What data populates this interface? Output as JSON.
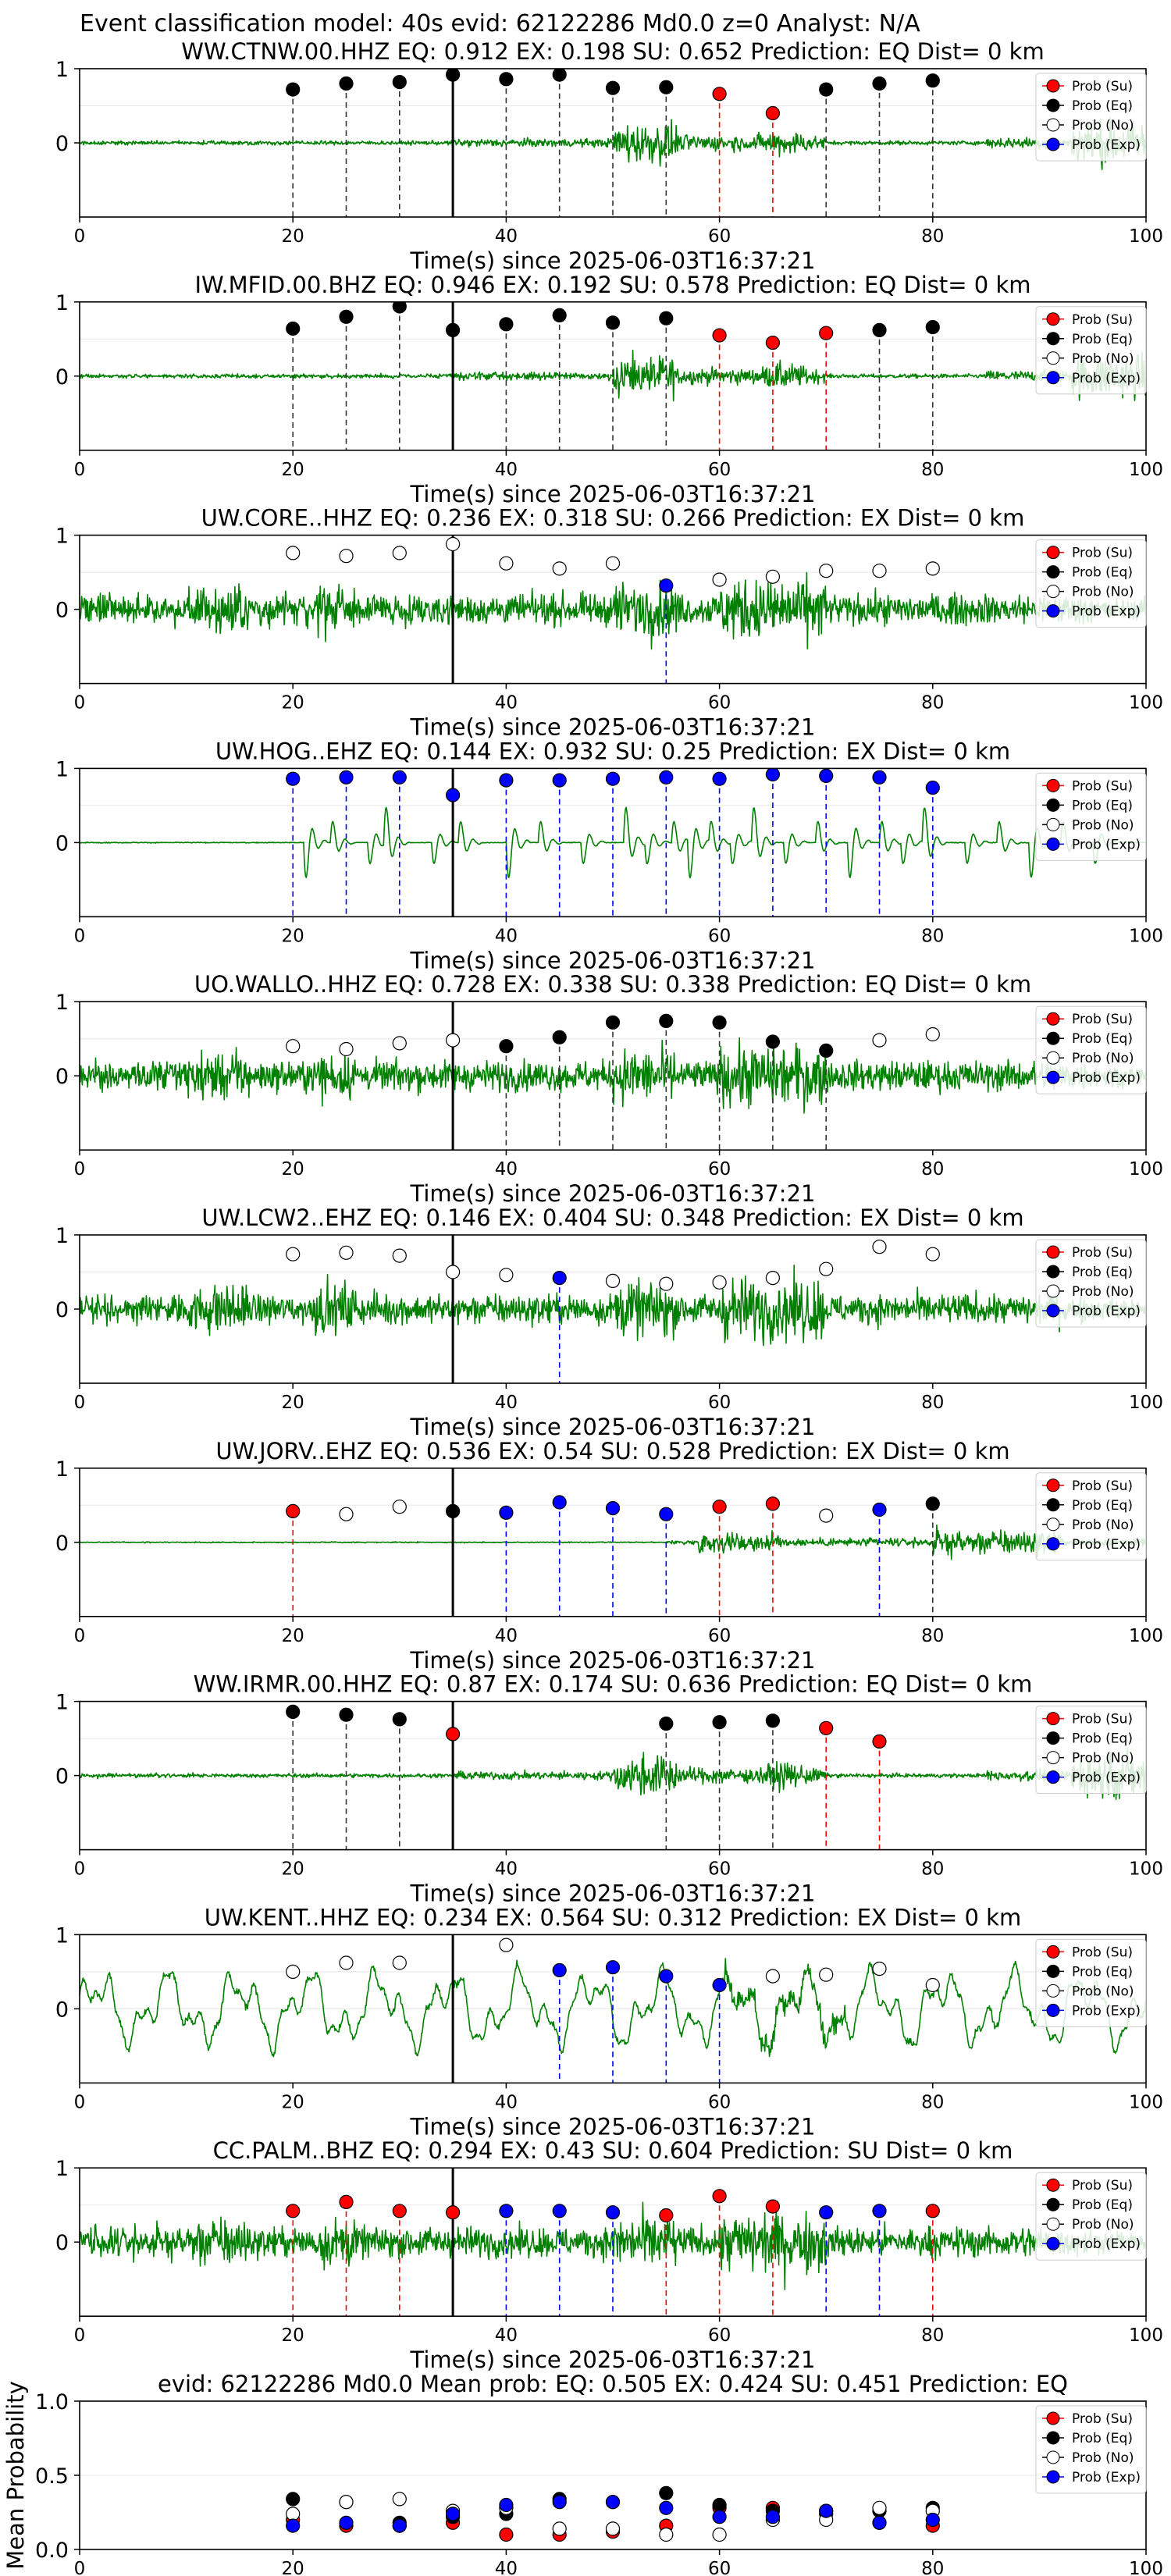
{
  "figure_title": "Event classification model: 40s evid: 62122286 Md0.0 z=0 Analyst: N/A",
  "legend_labels": [
    "Prob (Su)",
    "Prob (Eq)",
    "Prob (No)",
    "Prob (Exp)"
  ],
  "colors": {
    "waveform": "#008000",
    "su": "#ff0000",
    "eq": "#000000",
    "no": "#ffffff",
    "exp": "#0000ff",
    "grid": "#e8e8e8"
  },
  "chart_data": [
    {
      "type": "line",
      "title": "WW.CTNW.00.HHZ   EQ: 0.912  EX: 0.198  SU: 0.652   Prediction: EQ    Dist= 0 km",
      "xlabel": "Time(s) since 2025-06-03T16:37:21",
      "xlim": [
        0,
        100
      ],
      "ylim": [
        -1,
        1
      ],
      "xticks": [
        "0",
        "20",
        "40",
        "60",
        "80",
        "100"
      ],
      "yticks": [
        "0",
        "1"
      ],
      "grid": true,
      "legend": "top-right",
      "pick_line_x": 35,
      "waveform_style": "quiet-bursts",
      "windows": [
        {
          "x": 20,
          "cls": "eq",
          "p": 0.72
        },
        {
          "x": 25,
          "cls": "eq",
          "p": 0.8
        },
        {
          "x": 30,
          "cls": "eq",
          "p": 0.82
        },
        {
          "x": 35,
          "cls": "eq",
          "p": 0.92
        },
        {
          "x": 40,
          "cls": "eq",
          "p": 0.86
        },
        {
          "x": 45,
          "cls": "eq",
          "p": 0.92
        },
        {
          "x": 50,
          "cls": "eq",
          "p": 0.74
        },
        {
          "x": 55,
          "cls": "eq",
          "p": 0.75
        },
        {
          "x": 60,
          "cls": "su",
          "p": 0.66
        },
        {
          "x": 65,
          "cls": "su",
          "p": 0.4
        },
        {
          "x": 70,
          "cls": "eq",
          "p": 0.72
        },
        {
          "x": 75,
          "cls": "eq",
          "p": 0.8
        },
        {
          "x": 80,
          "cls": "eq",
          "p": 0.84
        }
      ]
    },
    {
      "type": "line",
      "title": "IW.MFID.00.BHZ   EQ: 0.946  EX: 0.192  SU: 0.578   Prediction: EQ    Dist= 0 km",
      "xlabel": "Time(s) since 2025-06-03T16:37:21",
      "xlim": [
        0,
        100
      ],
      "ylim": [
        -1,
        1
      ],
      "xticks": [
        "0",
        "20",
        "40",
        "60",
        "80",
        "100"
      ],
      "yticks": [
        "0",
        "1"
      ],
      "grid": true,
      "legend": "top-right",
      "pick_line_x": 35,
      "waveform_style": "quiet-bursts",
      "windows": [
        {
          "x": 20,
          "cls": "eq",
          "p": 0.64
        },
        {
          "x": 25,
          "cls": "eq",
          "p": 0.8
        },
        {
          "x": 30,
          "cls": "eq",
          "p": 0.94
        },
        {
          "x": 35,
          "cls": "eq",
          "p": 0.62
        },
        {
          "x": 40,
          "cls": "eq",
          "p": 0.7
        },
        {
          "x": 45,
          "cls": "eq",
          "p": 0.82
        },
        {
          "x": 50,
          "cls": "eq",
          "p": 0.72
        },
        {
          "x": 55,
          "cls": "eq",
          "p": 0.78
        },
        {
          "x": 60,
          "cls": "su",
          "p": 0.55
        },
        {
          "x": 65,
          "cls": "su",
          "p": 0.45
        },
        {
          "x": 70,
          "cls": "su",
          "p": 0.58
        },
        {
          "x": 75,
          "cls": "eq",
          "p": 0.62
        },
        {
          "x": 80,
          "cls": "eq",
          "p": 0.66
        }
      ]
    },
    {
      "type": "line",
      "title": "UW.CORE..HHZ   EQ: 0.236  EX: 0.318  SU: 0.266   Prediction: EX    Dist= 0 km",
      "xlabel": "Time(s) since 2025-06-03T16:37:21",
      "xlim": [
        0,
        100
      ],
      "ylim": [
        -1,
        1
      ],
      "xticks": [
        "0",
        "20",
        "40",
        "60",
        "80",
        "100"
      ],
      "yticks": [
        "0",
        "1"
      ],
      "grid": true,
      "legend": "top-right",
      "pick_line_x": 35,
      "waveform_style": "noisy",
      "windows": [
        {
          "x": 20,
          "cls": "no",
          "p": 0.76
        },
        {
          "x": 25,
          "cls": "no",
          "p": 0.72
        },
        {
          "x": 30,
          "cls": "no",
          "p": 0.76
        },
        {
          "x": 35,
          "cls": "no",
          "p": 0.88
        },
        {
          "x": 40,
          "cls": "no",
          "p": 0.62
        },
        {
          "x": 45,
          "cls": "no",
          "p": 0.55
        },
        {
          "x": 50,
          "cls": "no",
          "p": 0.62
        },
        {
          "x": 55,
          "cls": "exp",
          "p": 0.32
        },
        {
          "x": 60,
          "cls": "no",
          "p": 0.4
        },
        {
          "x": 65,
          "cls": "no",
          "p": 0.44
        },
        {
          "x": 70,
          "cls": "no",
          "p": 0.52
        },
        {
          "x": 75,
          "cls": "no",
          "p": 0.52
        },
        {
          "x": 80,
          "cls": "no",
          "p": 0.55
        }
      ]
    },
    {
      "type": "line",
      "title": "UW.HOG..EHZ   EQ: 0.144  EX: 0.932  SU: 0.25   Prediction: EX    Dist= 0 km",
      "xlabel": "Time(s) since 2025-06-03T16:37:21",
      "xlim": [
        0,
        100
      ],
      "ylim": [
        -1,
        1
      ],
      "xticks": [
        "0",
        "20",
        "40",
        "60",
        "80",
        "100"
      ],
      "yticks": [
        "0",
        "1"
      ],
      "grid": true,
      "legend": "top-right",
      "pick_line_x": 35,
      "waveform_style": "pulses",
      "windows": [
        {
          "x": 20,
          "cls": "exp",
          "p": 0.86
        },
        {
          "x": 25,
          "cls": "exp",
          "p": 0.88
        },
        {
          "x": 30,
          "cls": "exp",
          "p": 0.88
        },
        {
          "x": 35,
          "cls": "exp",
          "p": 0.64
        },
        {
          "x": 40,
          "cls": "exp",
          "p": 0.84
        },
        {
          "x": 45,
          "cls": "exp",
          "p": 0.84
        },
        {
          "x": 50,
          "cls": "exp",
          "p": 0.86
        },
        {
          "x": 55,
          "cls": "exp",
          "p": 0.88
        },
        {
          "x": 60,
          "cls": "exp",
          "p": 0.86
        },
        {
          "x": 65,
          "cls": "exp",
          "p": 0.92
        },
        {
          "x": 70,
          "cls": "exp",
          "p": 0.9
        },
        {
          "x": 75,
          "cls": "exp",
          "p": 0.88
        },
        {
          "x": 80,
          "cls": "exp",
          "p": 0.74
        }
      ]
    },
    {
      "type": "line",
      "title": "UO.WALLO..HHZ   EQ: 0.728  EX: 0.338  SU: 0.338   Prediction: EQ    Dist= 0 km",
      "xlabel": "Time(s) since 2025-06-03T16:37:21",
      "xlim": [
        0,
        100
      ],
      "ylim": [
        -1,
        1
      ],
      "xticks": [
        "0",
        "20",
        "40",
        "60",
        "80",
        "100"
      ],
      "yticks": [
        "0",
        "1"
      ],
      "grid": true,
      "legend": "top-right",
      "pick_line_x": 35,
      "waveform_style": "noisy",
      "windows": [
        {
          "x": 20,
          "cls": "no",
          "p": 0.4
        },
        {
          "x": 25,
          "cls": "no",
          "p": 0.36
        },
        {
          "x": 30,
          "cls": "no",
          "p": 0.44
        },
        {
          "x": 35,
          "cls": "no",
          "p": 0.48
        },
        {
          "x": 40,
          "cls": "eq",
          "p": 0.4
        },
        {
          "x": 45,
          "cls": "eq",
          "p": 0.52
        },
        {
          "x": 50,
          "cls": "eq",
          "p": 0.72
        },
        {
          "x": 55,
          "cls": "eq",
          "p": 0.74
        },
        {
          "x": 60,
          "cls": "eq",
          "p": 0.72
        },
        {
          "x": 65,
          "cls": "eq",
          "p": 0.46
        },
        {
          "x": 70,
          "cls": "eq",
          "p": 0.34
        },
        {
          "x": 75,
          "cls": "no",
          "p": 0.48
        },
        {
          "x": 80,
          "cls": "no",
          "p": 0.56
        }
      ]
    },
    {
      "type": "line",
      "title": "UW.LCW2..EHZ   EQ: 0.146  EX: 0.404  SU: 0.348   Prediction: EX    Dist= 0 km",
      "xlabel": "Time(s) since 2025-06-03T16:37:21",
      "xlim": [
        0,
        100
      ],
      "ylim": [
        -1,
        1
      ],
      "xticks": [
        "0",
        "20",
        "40",
        "60",
        "80",
        "100"
      ],
      "yticks": [
        "0",
        "1"
      ],
      "grid": true,
      "legend": "top-right",
      "pick_line_x": 35,
      "waveform_style": "noisy",
      "windows": [
        {
          "x": 20,
          "cls": "no",
          "p": 0.74
        },
        {
          "x": 25,
          "cls": "no",
          "p": 0.76
        },
        {
          "x": 30,
          "cls": "no",
          "p": 0.72
        },
        {
          "x": 35,
          "cls": "no",
          "p": 0.5
        },
        {
          "x": 40,
          "cls": "no",
          "p": 0.46
        },
        {
          "x": 45,
          "cls": "exp",
          "p": 0.42
        },
        {
          "x": 50,
          "cls": "no",
          "p": 0.38
        },
        {
          "x": 55,
          "cls": "no",
          "p": 0.34
        },
        {
          "x": 60,
          "cls": "no",
          "p": 0.36
        },
        {
          "x": 65,
          "cls": "no",
          "p": 0.42
        },
        {
          "x": 70,
          "cls": "no",
          "p": 0.54
        },
        {
          "x": 75,
          "cls": "no",
          "p": 0.84
        },
        {
          "x": 80,
          "cls": "no",
          "p": 0.74
        }
      ]
    },
    {
      "type": "line",
      "title": "UW.JORV..EHZ   EQ: 0.536  EX: 0.54  SU: 0.528   Prediction: EX    Dist= 0 km",
      "xlabel": "Time(s) since 2025-06-03T16:37:21",
      "xlim": [
        0,
        100
      ],
      "ylim": [
        -1,
        1
      ],
      "xticks": [
        "0",
        "20",
        "40",
        "60",
        "80",
        "100"
      ],
      "yticks": [
        "0",
        "1"
      ],
      "grid": true,
      "legend": "top-right",
      "pick_line_x": 35,
      "waveform_style": "flat-late-burst",
      "windows": [
        {
          "x": 20,
          "cls": "su",
          "p": 0.42
        },
        {
          "x": 25,
          "cls": "no",
          "p": 0.38
        },
        {
          "x": 30,
          "cls": "no",
          "p": 0.48
        },
        {
          "x": 35,
          "cls": "eq",
          "p": 0.42
        },
        {
          "x": 40,
          "cls": "exp",
          "p": 0.4
        },
        {
          "x": 45,
          "cls": "exp",
          "p": 0.54
        },
        {
          "x": 50,
          "cls": "exp",
          "p": 0.46
        },
        {
          "x": 55,
          "cls": "exp",
          "p": 0.38
        },
        {
          "x": 60,
          "cls": "su",
          "p": 0.48
        },
        {
          "x": 65,
          "cls": "su",
          "p": 0.52
        },
        {
          "x": 70,
          "cls": "no",
          "p": 0.36
        },
        {
          "x": 75,
          "cls": "exp",
          "p": 0.44
        },
        {
          "x": 80,
          "cls": "eq",
          "p": 0.52
        }
      ]
    },
    {
      "type": "line",
      "title": "WW.IRMR.00.HHZ   EQ: 0.87  EX: 0.174  SU: 0.636   Prediction: EQ    Dist= 0 km",
      "xlabel": "Time(s) since 2025-06-03T16:37:21",
      "xlim": [
        0,
        100
      ],
      "ylim": [
        -1,
        1
      ],
      "xticks": [
        "0",
        "20",
        "40",
        "60",
        "80",
        "100"
      ],
      "yticks": [
        "0",
        "1"
      ],
      "grid": true,
      "legend": "top-right",
      "pick_line_x": 35,
      "waveform_style": "quiet-bursts",
      "windows": [
        {
          "x": 20,
          "cls": "eq",
          "p": 0.86
        },
        {
          "x": 25,
          "cls": "eq",
          "p": 0.82
        },
        {
          "x": 30,
          "cls": "eq",
          "p": 0.76
        },
        {
          "x": 35,
          "cls": "su",
          "p": 0.56
        },
        {
          "x": 55,
          "cls": "eq",
          "p": 0.7
        },
        {
          "x": 60,
          "cls": "eq",
          "p": 0.72
        },
        {
          "x": 65,
          "cls": "eq",
          "p": 0.74
        },
        {
          "x": 70,
          "cls": "su",
          "p": 0.64
        },
        {
          "x": 75,
          "cls": "su",
          "p": 0.46
        }
      ]
    },
    {
      "type": "line",
      "title": "UW.KENT..HHZ   EQ: 0.234  EX: 0.564  SU: 0.312   Prediction: EX    Dist= 0 km",
      "xlabel": "Time(s) since 2025-06-03T16:37:21",
      "xlim": [
        0,
        100
      ],
      "ylim": [
        -1,
        1
      ],
      "xticks": [
        "0",
        "20",
        "40",
        "60",
        "80",
        "100"
      ],
      "yticks": [
        "0",
        "1"
      ],
      "grid": true,
      "legend": "top-right",
      "pick_line_x": 35,
      "waveform_style": "wavy",
      "windows": [
        {
          "x": 20,
          "cls": "no",
          "p": 0.5
        },
        {
          "x": 25,
          "cls": "no",
          "p": 0.62
        },
        {
          "x": 30,
          "cls": "no",
          "p": 0.62
        },
        {
          "x": 40,
          "cls": "no",
          "p": 0.86
        },
        {
          "x": 45,
          "cls": "exp",
          "p": 0.52
        },
        {
          "x": 50,
          "cls": "exp",
          "p": 0.56
        },
        {
          "x": 55,
          "cls": "exp",
          "p": 0.44
        },
        {
          "x": 60,
          "cls": "exp",
          "p": 0.32
        },
        {
          "x": 65,
          "cls": "no",
          "p": 0.44
        },
        {
          "x": 70,
          "cls": "no",
          "p": 0.46
        },
        {
          "x": 75,
          "cls": "no",
          "p": 0.54
        },
        {
          "x": 80,
          "cls": "no",
          "p": 0.32
        }
      ]
    },
    {
      "type": "line",
      "title": "CC.PALM..BHZ   EQ: 0.294  EX: 0.43  SU: 0.604   Prediction: SU    Dist= 0 km",
      "xlabel": "Time(s) since 2025-06-03T16:37:21",
      "xlim": [
        0,
        100
      ],
      "ylim": [
        -1,
        1
      ],
      "xticks": [
        "0",
        "20",
        "40",
        "60",
        "80",
        "100"
      ],
      "yticks": [
        "0",
        "1"
      ],
      "grid": true,
      "legend": "top-right",
      "pick_line_x": 35,
      "waveform_style": "noisy",
      "windows": [
        {
          "x": 20,
          "cls": "su",
          "p": 0.42
        },
        {
          "x": 25,
          "cls": "su",
          "p": 0.54
        },
        {
          "x": 30,
          "cls": "su",
          "p": 0.42
        },
        {
          "x": 35,
          "cls": "su",
          "p": 0.4
        },
        {
          "x": 40,
          "cls": "exp",
          "p": 0.42
        },
        {
          "x": 45,
          "cls": "exp",
          "p": 0.42
        },
        {
          "x": 50,
          "cls": "exp",
          "p": 0.4
        },
        {
          "x": 55,
          "cls": "su",
          "p": 0.36
        },
        {
          "x": 60,
          "cls": "su",
          "p": 0.62
        },
        {
          "x": 65,
          "cls": "su",
          "p": 0.48
        },
        {
          "x": 70,
          "cls": "exp",
          "p": 0.4
        },
        {
          "x": 75,
          "cls": "exp",
          "p": 0.42
        },
        {
          "x": 80,
          "cls": "su",
          "p": 0.42
        }
      ]
    },
    {
      "type": "scatter",
      "title": "evid: 62122286  Md0.0   Mean prob:   EQ: 0.505  EX: 0.424  SU: 0.451   Prediction: EQ",
      "ylabel": "Mean Probability",
      "xlim": [
        0,
        100
      ],
      "ylim": [
        0,
        1
      ],
      "xticks": [
        "0",
        "20",
        "40",
        "60",
        "80",
        "100"
      ],
      "yticks": [
        "0.0",
        "0.5",
        "1.0"
      ],
      "grid": true,
      "legend": "top-right",
      "x": [
        20,
        25,
        30,
        35,
        40,
        45,
        50,
        55,
        60,
        65,
        70,
        75,
        80
      ],
      "series": [
        {
          "name": "Prob (Su)",
          "cls": "su",
          "values": [
            0.2,
            0.16,
            0.16,
            0.18,
            0.1,
            0.1,
            0.12,
            0.16,
            0.28,
            0.28,
            0.26,
            0.18,
            0.16
          ]
        },
        {
          "name": "Prob (Eq)",
          "cls": "eq",
          "values": [
            0.34,
            0.32,
            0.18,
            0.22,
            0.24,
            0.34,
            0.32,
            0.38,
            0.3,
            0.26,
            0.24,
            0.26,
            0.28
          ]
        },
        {
          "name": "Prob (No)",
          "cls": "no",
          "values": [
            0.24,
            0.32,
            0.34,
            0.26,
            0.28,
            0.14,
            0.14,
            0.1,
            0.1,
            0.2,
            0.2,
            0.28,
            0.26
          ]
        },
        {
          "name": "Prob (Exp)",
          "cls": "exp",
          "values": [
            0.16,
            0.18,
            0.16,
            0.24,
            0.3,
            0.32,
            0.32,
            0.28,
            0.22,
            0.22,
            0.26,
            0.18,
            0.2
          ]
        }
      ]
    }
  ]
}
